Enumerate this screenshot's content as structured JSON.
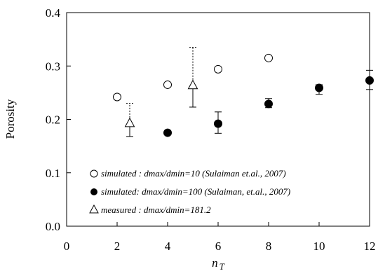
{
  "chart_data": {
    "type": "scatter",
    "title": "",
    "xlabel": "n",
    "xlabel_subscript": "T",
    "ylabel": "Porosity",
    "xlim": [
      0,
      12
    ],
    "ylim": [
      0,
      0.4
    ],
    "x_ticks": [
      "0",
      "2",
      "4",
      "6",
      "8",
      "10",
      "12"
    ],
    "y_ticks": [
      "0.0",
      "0.1",
      "0.2",
      "0.3",
      "0.4"
    ],
    "grid": false,
    "legend_position": "bottom-left",
    "series": [
      {
        "name": "simulated : dmax/dmin=10 (Sulaiman et.al., 2007)",
        "marker": "open-circle",
        "x": [
          2,
          4,
          6,
          8
        ],
        "y": [
          0.242,
          0.265,
          0.294,
          0.315
        ]
      },
      {
        "name": "simulated: dmax/dmin=100 (Sulaiman, et.al., 2007)",
        "marker": "filled-circle",
        "x": [
          4,
          6,
          8,
          10,
          12
        ],
        "y": [
          0.175,
          0.192,
          0.229,
          0.259,
          0.273
        ],
        "y_low": [
          0.175,
          0.174,
          0.222,
          0.247,
          0.256
        ],
        "y_high": [
          0.175,
          0.214,
          0.239,
          0.265,
          0.292
        ]
      },
      {
        "name": "measured : dmax/dmin=181.2",
        "marker": "open-triangle",
        "x": [
          2.5,
          5
        ],
        "y": [
          0.193,
          0.264
        ],
        "y_low": [
          0.168,
          0.223
        ],
        "y_high": [
          0.23,
          0.335
        ]
      }
    ]
  }
}
